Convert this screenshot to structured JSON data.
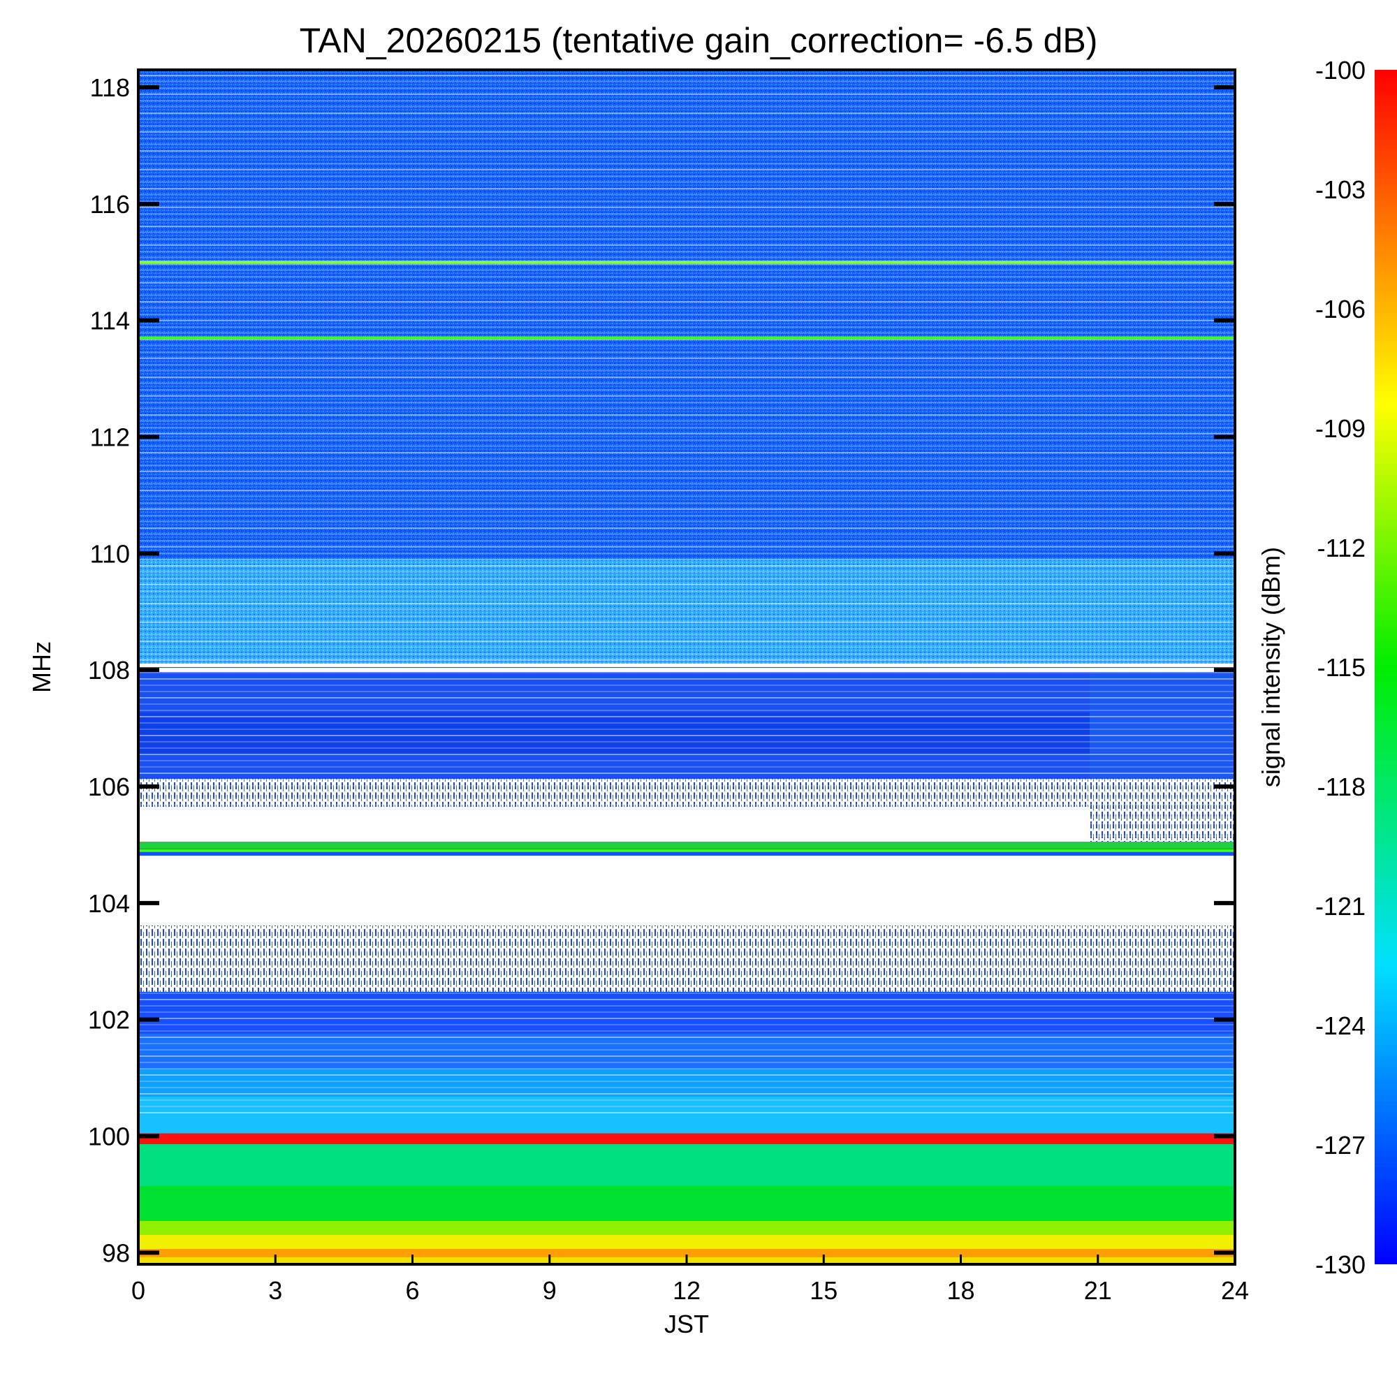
{
  "chart_data": {
    "type": "heatmap",
    "title": "TAN_20260215 (tentative gain_correction= -6.5 dB)",
    "xlabel": "JST",
    "ylabel": "MHz",
    "xlim": [
      0,
      24
    ],
    "ylim": [
      97.8,
      118.3
    ],
    "x_ticks": [
      "0",
      "3",
      "6",
      "9",
      "12",
      "15",
      "18",
      "21",
      "24"
    ],
    "y_ticks": [
      "98",
      "100",
      "102",
      "104",
      "106",
      "108",
      "110",
      "112",
      "114",
      "116",
      "118"
    ],
    "colorbar": {
      "label": "signal intensity (dBm)",
      "range": [
        -130,
        -100
      ],
      "ticks": [
        "-100",
        "-103",
        "-106",
        "-109",
        "-112",
        "-115",
        "-118",
        "-121",
        "-124",
        "-127",
        "-130"
      ],
      "colormap": "rainbow (blue → cyan → green → yellow → red)"
    },
    "features": [
      {
        "name": "strong carrier",
        "freq_mhz": 100.0,
        "level_dbm": -100
      },
      {
        "name": "carrier",
        "freq_mhz": 104.9,
        "level_dbm": -116
      },
      {
        "name": "carrier",
        "freq_mhz": 113.7,
        "level_dbm": -114
      },
      {
        "name": "carrier",
        "freq_mhz": 115.0,
        "level_dbm": -117
      },
      {
        "name": "band 98-100 MHz",
        "freq_range_mhz": [
          97.8,
          99.9
        ],
        "level_dbm": -110
      },
      {
        "name": "saturated/blank gap",
        "freq_range_mhz": [
          103.5,
          104.8
        ],
        "level_dbm": null
      },
      {
        "name": "blank gap",
        "freq_range_mhz": [
          105.0,
          105.5
        ],
        "time_range_h": [
          0,
          20.8
        ],
        "level_dbm": null
      },
      {
        "name": "background 106-118 MHz",
        "freq_range_mhz": [
          106,
          118.3
        ],
        "level_dbm": -127
      }
    ]
  }
}
